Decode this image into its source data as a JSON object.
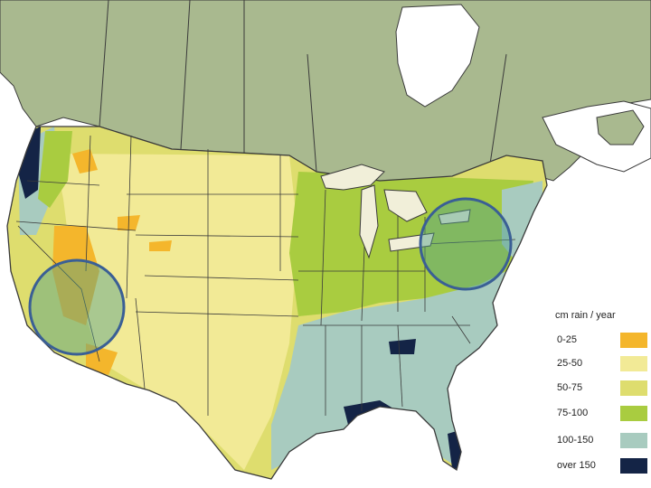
{
  "legend": {
    "title": "cm rain / year",
    "items": [
      {
        "label": "0-25",
        "color": "#f4b62c"
      },
      {
        "label": "25-50",
        "color": "#f2ea96"
      },
      {
        "label": "50-75",
        "color": "#dedd6e"
      },
      {
        "label": "75-100",
        "color": "#a9cc40"
      },
      {
        "label": "100-150",
        "color": "#a8cbbf"
      },
      {
        "label": "over 150",
        "color": "#142446"
      }
    ]
  },
  "colors": {
    "canada": "#a9b98f",
    "ocean": "#ffffff",
    "lakes": "#f1efd9",
    "borders": "#3a3a3a",
    "highlight_circle_fill": "#4fa08a",
    "highlight_circle_stroke": "#3a5f95"
  },
  "highlight_regions": [
    {
      "name": "Great Basin / Nevada"
    },
    {
      "name": "Northeast (New England / New York)"
    }
  ]
}
